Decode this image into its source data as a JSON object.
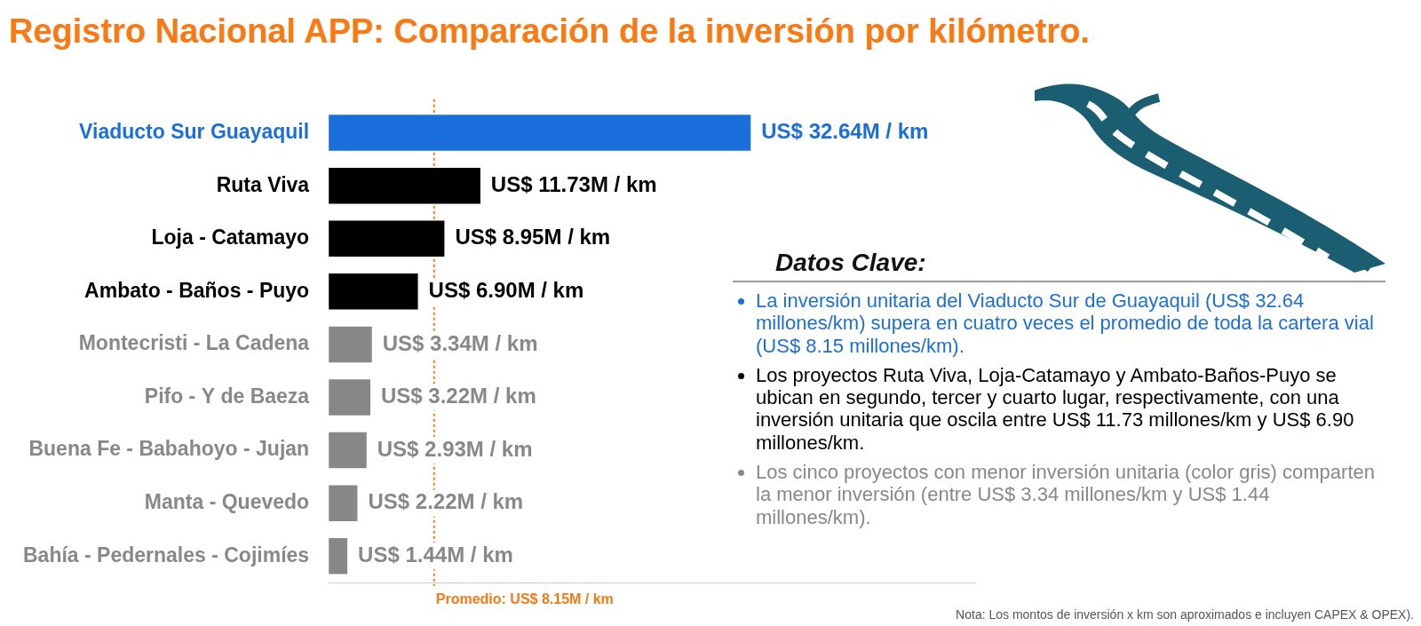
{
  "chart_data": {
    "type": "bar",
    "orientation": "horizontal",
    "title": "Registro Nacional APP: Comparación de la inversión por kilómetro.",
    "categories": [
      "Viaducto Sur Guayaquil",
      "Ruta Viva",
      "Loja - Catamayo",
      "Ambato - Baños - Puyo",
      "Montecristi - La Cadena",
      "Pifo - Y de Baeza",
      "Buena Fe - Babahoyo - Jujan",
      "Manta - Quevedo",
      "Bahía - Pedernales - Cojimíes"
    ],
    "values": [
      32.64,
      11.73,
      8.95,
      6.9,
      3.34,
      3.22,
      2.93,
      2.22,
      1.44
    ],
    "value_labels": [
      "US$ 32.64M / km",
      "US$ 11.73M / km",
      "US$ 8.95M / km",
      "US$ 6.90M / km",
      "US$ 3.34M / km",
      "US$ 3.22M / km",
      "US$ 2.93M / km",
      "US$ 2.22M / km",
      "US$ 1.44M / km"
    ],
    "colors": [
      "#1a6fdc",
      "#000000",
      "#000000",
      "#000000",
      "#888888",
      "#888888",
      "#888888",
      "#888888",
      "#888888"
    ],
    "data_labels": true,
    "tick_labels": "y",
    "grid": false,
    "xlim": [
      0,
      50
    ],
    "average": {
      "value": 8.15,
      "label": "Promedio: US$ 8.15M / km"
    },
    "key_facts": {
      "title": "Datos Clave:",
      "items": [
        "La inversión unitaria del Viaducto Sur de Guayaquil (US$ 32.64 millones/km) supera en cuatro veces el promedio de toda la cartera vial (US$ 8.15 millones/km).",
        "Los proyectos Ruta Viva, Loja-Catamayo y Ambato-Baños-Puyo se ubican en segundo, tercer y cuarto lugar, respectivamente, con una inversión unitaria que oscila entre US$ 11.73 millones/km y US$ 6.90 millones/km.",
        "Los cinco proyectos con menor inversión unitaria (color gris) comparten la menor inversión (entre US$ 3.34 millones/km y US$ 1.44 millones/km)."
      ]
    },
    "note": "Nota: Los montos de inversión x km son aproximados e incluyen CAPEX & OPEX)."
  }
}
